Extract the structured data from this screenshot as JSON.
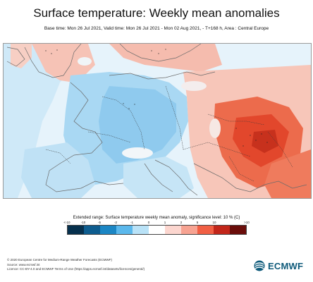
{
  "header": {
    "title": "Surface temperature: Weekly mean anomalies",
    "subtitle": "Base time: Mon 26 Jul 2021, Valid time: Mon 26 Jul 2021 - Mon 02 Aug 2021, - T+168 h, Area : Central Europe"
  },
  "map": {
    "region": "Central Europe",
    "variable": "Surface temperature weekly mean anomaly",
    "dominant_colors": {
      "ocean": "#e8f4fb",
      "cool_anomaly": "#a7d6f2",
      "warm_anomaly": "#f4bdb0",
      "strong_warm": "#ea5b3d",
      "very_strong_warm": "#c63a24"
    }
  },
  "legend": {
    "title": "Extended range: Surface temperature weekly mean anomaly, significance level: 10 % (C)",
    "ticks": [
      "<-10",
      "-10",
      "-5",
      "-2",
      "-1",
      "0",
      "1",
      "2",
      "5",
      "10",
      ">10"
    ],
    "colors": [
      "#06304d",
      "#0e5d8f",
      "#1b86c4",
      "#5bb8ec",
      "#b9e2f7",
      "#ffffff",
      "#fcd6cf",
      "#f7a392",
      "#f15f44",
      "#c2261a",
      "#6a0d0a"
    ]
  },
  "footer": {
    "line1": "© 2020 European Centre for Medium-Range Weather Forecasts (ECMWF)",
    "line2": "Source: www.ecmwf.int",
    "line3": "Licence: CC-BY-4.0 and ECMWF Terms of Use (https://apps.ecmwf.int/datasets/licences/general/)"
  },
  "logo": {
    "text": "ECMWF",
    "icon": "ecmwf-logo-icon",
    "color": "#0e5a7a"
  }
}
